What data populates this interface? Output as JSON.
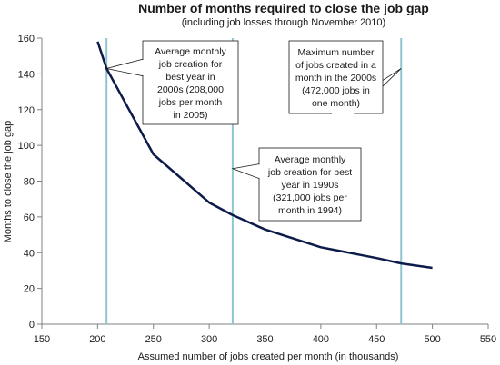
{
  "chart_data": {
    "type": "line",
    "title": "Number of months required to close the job gap",
    "subtitle": "(including job losses through November 2010)",
    "xlabel": "Assumed number of jobs created per month (in thousands)",
    "ylabel": "Months to close the job gap",
    "xlim": [
      150,
      550
    ],
    "ylim": [
      0,
      160
    ],
    "x_ticks": [
      "150",
      "200",
      "250",
      "300",
      "350",
      "400",
      "450",
      "500",
      "550"
    ],
    "y_ticks": [
      "0",
      "20",
      "40",
      "60",
      "80",
      "100",
      "120",
      "140",
      "160"
    ],
    "grid": false,
    "legend": "none",
    "series": [
      {
        "x": [
          200,
          208,
          250,
          300,
          321,
          350,
          400,
          450,
          472,
          500
        ],
        "y": [
          158,
          143,
          95,
          68,
          61,
          53,
          43,
          37,
          34,
          31.5
        ]
      }
    ],
    "reference_lines_x": [
      208,
      321,
      472
    ],
    "annotations": [
      {
        "target": [
          208,
          143
        ],
        "lines": [
          "Average monthly",
          "job creation for",
          "best year in",
          "2000s (208,000",
          "jobs per month",
          "in 2005)"
        ]
      },
      {
        "target": [
          472,
          143
        ],
        "lines": [
          "Maximum number",
          "of jobs created in a",
          "month in the 2000s",
          "(472,000 jobs in",
          "one month)"
        ]
      },
      {
        "target": [
          321,
          87
        ],
        "lines": [
          "Average monthly",
          "job creation for best",
          "year  in 1990s",
          "(321,000 jobs per",
          "month in 1994)"
        ]
      }
    ],
    "colors": {
      "line": "#0d1b4a",
      "reference_line": "#8ec6cf",
      "axis": "#808080",
      "text": "#1a1a1a"
    }
  }
}
